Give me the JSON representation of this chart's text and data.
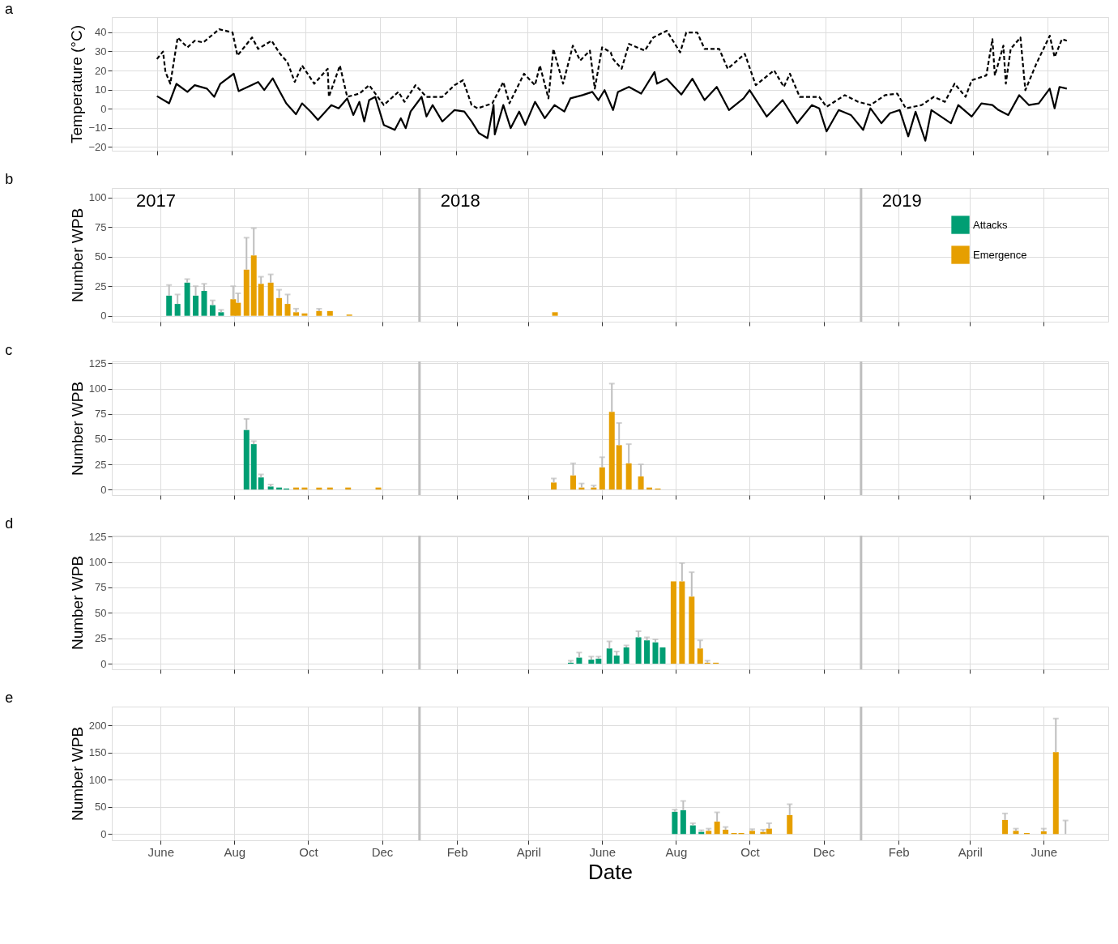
{
  "chart_data": [
    {
      "type": "line",
      "title": "a",
      "ylabel": "Temperature (°C)",
      "xlim": [
        "2017-04-25",
        "2019-07-21"
      ],
      "xticks": [
        {
          "value": "2017-06-01",
          "label": null
        },
        {
          "value": "2017-08-01",
          "label": null
        },
        {
          "value": "2017-10-01",
          "label": null
        },
        {
          "value": "2017-12-01",
          "label": null
        },
        {
          "value": "2018-02-01",
          "label": null
        },
        {
          "value": "2018-04-01",
          "label": null
        },
        {
          "value": "2018-06-01",
          "label": null
        },
        {
          "value": "2018-08-01",
          "label": null
        },
        {
          "value": "2018-10-01",
          "label": null
        },
        {
          "value": "2018-12-01",
          "label": null
        },
        {
          "value": "2019-02-01",
          "label": null
        },
        {
          "value": "2019-04-01",
          "label": null
        },
        {
          "value": "2019-06-01",
          "label": null
        }
      ],
      "ylim": [
        -22,
        48
      ],
      "yticks": [
        -20,
        -10,
        0,
        10,
        20,
        30,
        40
      ],
      "grid": true,
      "tick_labels": "y",
      "series": [
        {
          "color": "#000000",
          "line_style": "dashed",
          "x": [
            "2017-06-01",
            "2017-06-06",
            "2017-06-08",
            "2017-06-12",
            "2017-06-18",
            "2017-06-26",
            "2017-07-02",
            "2017-07-09",
            "2017-07-22",
            "2017-08-02",
            "2017-08-06",
            "2017-08-18",
            "2017-08-23",
            "2017-09-03",
            "2017-09-10",
            "2017-09-16",
            "2017-09-22",
            "2017-09-28",
            "2017-10-08",
            "2017-10-19",
            "2017-10-20",
            "2017-10-29",
            "2017-11-04",
            "2017-11-14",
            "2017-11-22",
            "2017-12-04",
            "2017-12-16",
            "2017-12-21",
            "2017-12-30",
            "2018-01-08",
            "2018-01-21",
            "2018-01-31",
            "2018-02-07",
            "2018-02-14",
            "2018-02-19",
            "2018-03-03",
            "2018-03-12",
            "2018-03-17",
            "2018-03-29",
            "2018-04-07",
            "2018-04-11",
            "2018-04-18",
            "2018-04-22",
            "2018-04-30",
            "2018-05-08",
            "2018-05-14",
            "2018-05-22",
            "2018-05-26",
            "2018-06-01",
            "2018-06-08",
            "2018-06-10",
            "2018-06-17",
            "2018-06-23",
            "2018-07-06",
            "2018-07-13",
            "2018-07-24",
            "2018-08-04",
            "2018-08-09",
            "2018-08-18",
            "2018-08-24",
            "2018-09-05",
            "2018-09-12",
            "2018-09-26",
            "2018-10-05",
            "2018-10-20",
            "2018-10-28",
            "2018-11-02",
            "2018-11-10",
            "2018-11-26",
            "2018-12-02",
            "2018-12-17",
            "2018-12-28",
            "2019-01-07",
            "2019-01-19",
            "2019-01-29",
            "2019-02-05",
            "2019-02-18",
            "2019-02-28",
            "2019-03-09",
            "2019-03-17",
            "2019-03-26",
            "2019-03-31",
            "2019-04-12",
            "2019-04-17",
            "2019-04-19",
            "2019-04-26",
            "2019-04-28",
            "2019-05-02",
            "2019-05-10",
            "2019-05-14",
            "2019-05-23",
            "2019-06-03",
            "2019-06-07",
            "2019-06-13",
            "2019-06-17"
          ],
          "values": [
            26,
            29.9,
            19.2,
            13.1,
            37.3,
            32.1,
            35.6,
            34.7,
            41.6,
            39.9,
            27.8,
            37.3,
            31.3,
            35.6,
            28.7,
            24.4,
            14,
            22.6,
            13.1,
            20.9,
            6.2,
            22.6,
            6.2,
            7.9,
            12.3,
            1.9,
            8.8,
            3.6,
            12.3,
            6.2,
            6.2,
            12.3,
            14.9,
            1.9,
            0.2,
            2.8,
            14,
            2.8,
            18.3,
            12.3,
            22.6,
            5.4,
            31.3,
            13.1,
            33,
            25.2,
            30.4,
            10.5,
            32.1,
            29.5,
            26,
            20.9,
            33.9,
            30.4,
            37.3,
            40.8,
            29.5,
            39.9,
            39.9,
            31.3,
            31.3,
            20.9,
            28.7,
            12.3,
            20.1,
            11.4,
            18.3,
            6.2,
            6.2,
            1,
            7.1,
            3.6,
            1.9,
            7.1,
            7.9,
            0.2,
            1.9,
            6.2,
            3.6,
            13.1,
            6.2,
            14.9,
            17.4,
            36.4,
            17.4,
            33,
            13.1,
            31.3,
            37.3,
            9.7,
            23.5,
            38.2,
            27,
            36.4,
            35.6
          ]
        },
        {
          "color": "#000000",
          "line_style": "solid",
          "x": [
            "2017-06-01",
            "2017-06-11",
            "2017-06-17",
            "2017-06-26",
            "2017-07-02",
            "2017-07-12",
            "2017-07-18",
            "2017-07-23",
            "2017-08-03",
            "2017-08-07",
            "2017-08-23",
            "2017-08-28",
            "2017-09-04",
            "2017-09-09",
            "2017-09-15",
            "2017-09-23",
            "2017-09-28",
            "2017-10-05",
            "2017-10-11",
            "2017-10-22",
            "2017-10-28",
            "2017-11-04",
            "2017-11-09",
            "2017-11-14",
            "2017-11-18",
            "2017-11-22",
            "2017-11-27",
            "2017-12-04",
            "2017-12-13",
            "2017-12-18",
            "2017-12-22",
            "2017-12-26",
            "2018-01-04",
            "2018-01-08",
            "2018-01-13",
            "2018-01-21",
            "2018-01-31",
            "2018-02-08",
            "2018-02-14",
            "2018-02-20",
            "2018-02-27",
            "2018-03-04",
            "2018-03-05",
            "2018-03-12",
            "2018-03-18",
            "2018-03-25",
            "2018-03-30",
            "2018-04-07",
            "2018-04-15",
            "2018-04-23",
            "2018-05-01",
            "2018-05-06",
            "2018-05-16",
            "2018-05-24",
            "2018-05-29",
            "2018-06-03",
            "2018-06-10",
            "2018-06-14",
            "2018-06-23",
            "2018-07-03",
            "2018-07-14",
            "2018-07-16",
            "2018-07-24",
            "2018-08-05",
            "2018-08-14",
            "2018-08-24",
            "2018-09-03",
            "2018-09-13",
            "2018-09-25",
            "2018-09-30",
            "2018-10-14",
            "2018-10-27",
            "2018-11-08",
            "2018-11-20",
            "2018-11-26",
            "2018-12-02",
            "2018-12-12",
            "2018-12-22",
            "2019-01-01",
            "2019-01-07",
            "2019-01-16",
            "2019-01-23",
            "2019-01-31",
            "2019-02-07",
            "2019-02-13",
            "2019-02-21",
            "2019-02-26",
            "2019-03-14",
            "2019-03-20",
            "2019-03-31",
            "2019-04-08",
            "2019-04-17",
            "2019-04-22",
            "2019-04-30",
            "2019-05-09",
            "2019-05-17",
            "2019-05-25",
            "2019-06-03",
            "2019-06-07",
            "2019-06-11",
            "2019-06-17"
          ],
          "values": [
            6.6,
            2.8,
            13,
            8.8,
            12.3,
            10.5,
            6.2,
            13.1,
            18.3,
            9.2,
            14,
            9.8,
            15.9,
            9.8,
            2.8,
            -2.9,
            2.8,
            -1.5,
            -5.9,
            1.9,
            0.2,
            5.4,
            -3.3,
            3.6,
            -6.7,
            4.5,
            6.2,
            -8.5,
            -11.1,
            -5,
            -10.2,
            -1.5,
            6.2,
            -4.1,
            1.9,
            -6.7,
            -0.7,
            -1.5,
            -6.7,
            -12.8,
            -15.4,
            1.9,
            -13.5,
            1.9,
            -10.2,
            -1.5,
            -8.5,
            3.6,
            -5,
            1.9,
            -1.5,
            5.4,
            7.1,
            8.8,
            4.5,
            9.7,
            -0.7,
            8.8,
            11.4,
            7.9,
            19.2,
            13.1,
            15.7,
            7.4,
            15.7,
            4.5,
            11.4,
            -0.7,
            5.4,
            9.7,
            -4.1,
            4.5,
            -7.6,
            1.9,
            0.2,
            -11.9,
            -0.7,
            -3.3,
            -11.1,
            0.2,
            -7.6,
            -2.4,
            -0.7,
            -14.5,
            -1.6,
            -16.8,
            -0.7,
            -7.6,
            1.9,
            -4.1,
            2.8,
            1.9,
            -0.7,
            -3.3,
            7.1,
            1.9,
            2.8,
            10.5,
            0.2,
            11.4,
            10.5
          ]
        }
      ]
    },
    {
      "type": "bar",
      "title": "b",
      "ylabel": "Number WPB",
      "xlim": [
        "2017-04-25",
        "2019-07-21"
      ],
      "xticks": [
        {
          "value": "2017-06-01",
          "label": null
        },
        {
          "value": "2017-08-01",
          "label": null
        },
        {
          "value": "2017-10-01",
          "label": null
        },
        {
          "value": "2017-12-01",
          "label": null
        },
        {
          "value": "2018-02-01",
          "label": null
        },
        {
          "value": "2018-04-01",
          "label": null
        },
        {
          "value": "2018-06-01",
          "label": null
        },
        {
          "value": "2018-08-01",
          "label": null
        },
        {
          "value": "2018-10-01",
          "label": null
        },
        {
          "value": "2018-12-01",
          "label": null
        },
        {
          "value": "2019-02-01",
          "label": null
        },
        {
          "value": "2019-04-01",
          "label": null
        },
        {
          "value": "2019-06-01",
          "label": null
        }
      ],
      "ylim": [
        -5,
        108
      ],
      "yticks": [
        0,
        25,
        50,
        75,
        100
      ],
      "grid": true,
      "tick_labels": "y",
      "legend": "right",
      "annotations": [
        "2017"
      ],
      "ref_lines": [
        {
          "axis": "x",
          "value": "2018-01-01",
          "label": "2018",
          "color": "#bebebe"
        },
        {
          "axis": "x",
          "value": "2019-01-01",
          "label": "2019",
          "color": "#bebebe"
        }
      ],
      "series": [
        {
          "name": "Attacks",
          "color": "#009e73",
          "x": [
            "2017-06-08",
            "2017-06-15",
            "2017-06-23",
            "2017-06-30",
            "2017-07-07",
            "2017-07-14",
            "2017-07-21"
          ],
          "values": [
            17,
            10,
            28,
            17,
            21,
            9,
            3
          ],
          "errors": [
            [
              17,
              26
            ],
            [
              10,
              18
            ],
            [
              28,
              31
            ],
            [
              17,
              25
            ],
            [
              21,
              27
            ],
            [
              9,
              13
            ],
            [
              3,
              5
            ]
          ]
        },
        {
          "name": "Emergence",
          "color": "#e69f00",
          "x": [
            "2017-07-31",
            "2017-08-04",
            "2017-08-11",
            "2017-08-17",
            "2017-08-23",
            "2017-08-31",
            "2017-09-07",
            "2017-09-14",
            "2017-09-21",
            "2017-09-28",
            "2017-10-10",
            "2017-10-19",
            "2017-11-04",
            "2018-04-23"
          ],
          "values": [
            14,
            11,
            39,
            51,
            27,
            28,
            15,
            10,
            3,
            2,
            4,
            4,
            1,
            3
          ],
          "errors": [
            [
              14,
              25
            ],
            [
              11,
              19
            ],
            [
              39,
              66
            ],
            [
              51,
              74
            ],
            [
              27,
              33
            ],
            [
              28,
              35
            ],
            [
              15,
              22
            ],
            [
              10,
              18
            ],
            [
              3,
              6
            ],
            null,
            [
              4,
              6
            ],
            null,
            null,
            null
          ]
        }
      ]
    },
    {
      "type": "bar",
      "title": "c",
      "ylabel": "Number WPB",
      "xlim": [
        "2017-04-25",
        "2019-07-21"
      ],
      "xticks": [
        {
          "value": "2017-06-01",
          "label": null
        },
        {
          "value": "2017-08-01",
          "label": null
        },
        {
          "value": "2017-10-01",
          "label": null
        },
        {
          "value": "2017-12-01",
          "label": null
        },
        {
          "value": "2018-02-01",
          "label": null
        },
        {
          "value": "2018-04-01",
          "label": null
        },
        {
          "value": "2018-06-01",
          "label": null
        },
        {
          "value": "2018-08-01",
          "label": null
        },
        {
          "value": "2018-10-01",
          "label": null
        },
        {
          "value": "2018-12-01",
          "label": null
        },
        {
          "value": "2019-02-01",
          "label": null
        },
        {
          "value": "2019-04-01",
          "label": null
        },
        {
          "value": "2019-06-01",
          "label": null
        }
      ],
      "ylim": [
        -5.5,
        127
      ],
      "yticks": [
        0,
        25,
        50,
        75,
        100,
        125
      ],
      "grid": true,
      "tick_labels": "y",
      "ref_lines": [
        {
          "axis": "x",
          "value": "2018-01-01",
          "color": "#bebebe"
        },
        {
          "axis": "x",
          "value": "2019-01-01",
          "color": "#bebebe"
        }
      ],
      "series": [
        {
          "color": "#009e73",
          "x": [
            "2017-08-11",
            "2017-08-17",
            "2017-08-23",
            "2017-08-31",
            "2017-09-07",
            "2017-09-13"
          ],
          "values": [
            59,
            45,
            12,
            3,
            2,
            1
          ],
          "errors": [
            [
              59,
              70
            ],
            [
              45,
              48
            ],
            [
              12,
              15
            ],
            [
              3,
              5
            ],
            null,
            null
          ]
        },
        {
          "color": "#e69f00",
          "x": [
            "2017-09-21",
            "2017-09-28",
            "2017-10-10",
            "2017-10-19",
            "2017-11-03",
            "2017-11-28",
            "2018-04-22",
            "2018-05-08",
            "2018-05-15",
            "2018-05-25",
            "2018-06-01",
            "2018-06-09",
            "2018-06-15",
            "2018-06-23",
            "2018-07-03",
            "2018-07-10",
            "2018-07-17"
          ],
          "values": [
            2,
            2,
            2,
            2,
            2,
            2,
            7,
            14,
            2,
            2,
            22,
            77,
            44,
            26,
            13,
            2,
            1
          ],
          "errors": [
            null,
            null,
            null,
            null,
            null,
            null,
            [
              7,
              11
            ],
            [
              14,
              26
            ],
            [
              2,
              6
            ],
            [
              2,
              4
            ],
            [
              22,
              32
            ],
            [
              77,
              105
            ],
            [
              44,
              66
            ],
            [
              26,
              45
            ],
            [
              13,
              25
            ],
            null,
            null
          ]
        }
      ]
    },
    {
      "type": "bar",
      "title": "d",
      "ylabel": "Number WPB",
      "xlim": [
        "2017-04-25",
        "2019-07-21"
      ],
      "xticks": [
        {
          "value": "2017-06-01",
          "label": null
        },
        {
          "value": "2017-08-01",
          "label": null
        },
        {
          "value": "2017-10-01",
          "label": null
        },
        {
          "value": "2017-12-01",
          "label": null
        },
        {
          "value": "2018-02-01",
          "label": null
        },
        {
          "value": "2018-04-01",
          "label": null
        },
        {
          "value": "2018-06-01",
          "label": null
        },
        {
          "value": "2018-08-01",
          "label": null
        },
        {
          "value": "2018-10-01",
          "label": null
        },
        {
          "value": "2018-12-01",
          "label": null
        },
        {
          "value": "2019-02-01",
          "label": null
        },
        {
          "value": "2019-04-01",
          "label": null
        },
        {
          "value": "2019-06-01",
          "label": null
        }
      ],
      "ylim": [
        -5.5,
        126
      ],
      "yticks": [
        0,
        25,
        50,
        75,
        100,
        125
      ],
      "grid": true,
      "tick_labels": "y",
      "ref_lines": [
        {
          "axis": "x",
          "value": "2018-01-01",
          "color": "#bebebe"
        },
        {
          "axis": "x",
          "value": "2019-01-01",
          "color": "#bebebe"
        }
      ],
      "series": [
        {
          "color": "#009e73",
          "x": [
            "2018-05-06",
            "2018-05-13",
            "2018-05-23",
            "2018-05-29",
            "2018-06-07",
            "2018-06-13",
            "2018-06-21",
            "2018-07-01",
            "2018-07-08",
            "2018-07-15",
            "2018-07-21"
          ],
          "values": [
            1,
            6,
            4,
            5,
            15,
            8,
            16,
            26,
            23,
            21,
            16
          ],
          "errors": [
            [
              1,
              3
            ],
            [
              6,
              11
            ],
            [
              4,
              7
            ],
            [
              5,
              7
            ],
            [
              15,
              22
            ],
            [
              8,
              12
            ],
            [
              16,
              18
            ],
            [
              26,
              32
            ],
            [
              23,
              26
            ],
            [
              21,
              24
            ],
            null
          ]
        },
        {
          "color": "#e69f00",
          "x": [
            "2018-07-30",
            "2018-08-06",
            "2018-08-14",
            "2018-08-21",
            "2018-08-27",
            "2018-09-03"
          ],
          "values": [
            81,
            81,
            66,
            15,
            1,
            1
          ],
          "errors": [
            null,
            [
              81,
              99
            ],
            [
              66,
              90
            ],
            [
              15,
              23
            ],
            [
              1,
              3
            ],
            null
          ]
        }
      ]
    },
    {
      "type": "bar",
      "title": "e",
      "ylabel": "Number WPB",
      "xlabel": "Date",
      "xlim": [
        "2017-04-25",
        "2019-07-21"
      ],
      "xticks": [
        {
          "value": "2017-06-01",
          "label": "June"
        },
        {
          "value": "2017-08-01",
          "label": "Aug"
        },
        {
          "value": "2017-10-01",
          "label": "Oct"
        },
        {
          "value": "2017-12-01",
          "label": "Dec"
        },
        {
          "value": "2018-02-01",
          "label": "Feb"
        },
        {
          "value": "2018-04-01",
          "label": "April"
        },
        {
          "value": "2018-06-01",
          "label": "June"
        },
        {
          "value": "2018-08-01",
          "label": "Aug"
        },
        {
          "value": "2018-10-01",
          "label": "Oct"
        },
        {
          "value": "2018-12-01",
          "label": "Dec"
        },
        {
          "value": "2019-02-01",
          "label": "Feb"
        },
        {
          "value": "2019-04-01",
          "label": "April"
        },
        {
          "value": "2019-06-01",
          "label": "June"
        }
      ],
      "ylim": [
        -11.5,
        235
      ],
      "yticks": [
        0,
        50,
        100,
        150,
        200
      ],
      "grid": true,
      "ref_lines": [
        {
          "axis": "x",
          "value": "2018-01-01",
          "color": "#bebebe"
        },
        {
          "axis": "x",
          "value": "2019-01-01",
          "color": "#bebebe"
        }
      ],
      "series": [
        {
          "color": "#009e73",
          "x": [
            "2018-07-31",
            "2018-08-07",
            "2018-08-15",
            "2018-08-22"
          ],
          "values": [
            41,
            44,
            16,
            4
          ],
          "errors": [
            [
              41,
              45
            ],
            [
              44,
              61
            ],
            [
              16,
              20
            ],
            [
              4,
              7
            ]
          ]
        },
        {
          "color": "#e69f00",
          "x": [
            "2018-08-28",
            "2018-09-04",
            "2018-09-11",
            "2018-09-18",
            "2018-09-24",
            "2018-10-03",
            "2018-10-12",
            "2018-10-17",
            "2018-11-03",
            "2019-04-30",
            "2019-05-09",
            "2019-05-18",
            "2019-06-01",
            "2019-06-11",
            "2019-06-19"
          ],
          "values": [
            6,
            23,
            8,
            2,
            2,
            6,
            4,
            10,
            35,
            26,
            6,
            2,
            5,
            151,
            0
          ],
          "errors": [
            [
              6,
              10
            ],
            [
              23,
              40
            ],
            [
              8,
              13
            ],
            null,
            null,
            [
              6,
              9
            ],
            [
              4,
              8
            ],
            [
              10,
              20
            ],
            [
              35,
              55
            ],
            [
              26,
              38
            ],
            [
              6,
              10
            ],
            null,
            [
              5,
              10
            ],
            [
              151,
              213
            ],
            [
              0,
              25
            ]
          ]
        }
      ]
    }
  ]
}
